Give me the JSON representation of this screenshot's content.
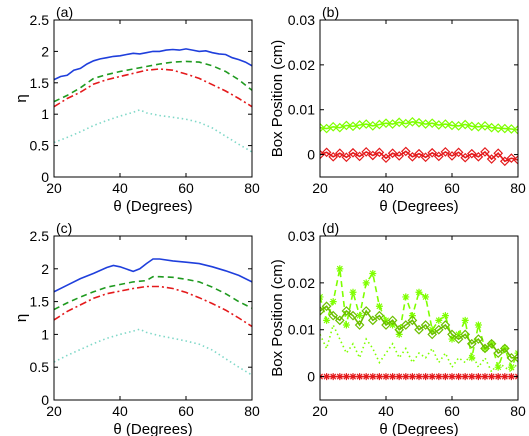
{
  "chart_data": [
    {
      "type": "line",
      "panel_label": "(a)",
      "xlabel": "θ (Degrees)",
      "ylabel": "η",
      "xlim": [
        20,
        80
      ],
      "ylim": [
        0,
        2.5
      ],
      "xticks": [
        20,
        40,
        60,
        80
      ],
      "yticks": [
        0,
        0.5,
        1,
        1.5,
        2,
        2.5
      ],
      "ytick_labels": [
        "0",
        "0.5",
        "1",
        "1.5",
        "2",
        "2.5"
      ],
      "grid": false,
      "series": [
        {
          "color": "#1f3fdc",
          "style": "solid",
          "x": [
            20,
            22,
            24,
            26,
            28,
            30,
            32,
            34,
            36,
            38,
            40,
            42,
            44,
            46,
            48,
            50,
            52,
            54,
            56,
            58,
            60,
            62,
            64,
            66,
            68,
            70,
            72,
            74,
            76,
            78,
            80
          ],
          "y": [
            1.55,
            1.6,
            1.62,
            1.7,
            1.73,
            1.8,
            1.85,
            1.88,
            1.9,
            1.92,
            1.93,
            1.95,
            1.97,
            1.96,
            1.98,
            2.0,
            2.0,
            2.02,
            2.03,
            2.02,
            2.04,
            2.02,
            2.0,
            2.01,
            1.98,
            1.96,
            1.95,
            1.9,
            1.87,
            1.83,
            1.77
          ]
        },
        {
          "color": "#1f9a1f",
          "style": "dashed",
          "x": [
            20,
            24,
            28,
            32,
            36,
            40,
            44,
            48,
            52,
            56,
            60,
            64,
            68,
            72,
            76,
            80
          ],
          "y": [
            1.2,
            1.3,
            1.42,
            1.57,
            1.63,
            1.68,
            1.72,
            1.76,
            1.8,
            1.83,
            1.84,
            1.83,
            1.77,
            1.68,
            1.55,
            1.38
          ]
        },
        {
          "color": "#e41a1c",
          "style": "dashdot",
          "x": [
            20,
            24,
            28,
            32,
            36,
            40,
            44,
            48,
            52,
            56,
            60,
            64,
            68,
            72,
            76,
            80
          ],
          "y": [
            1.12,
            1.25,
            1.35,
            1.48,
            1.55,
            1.6,
            1.65,
            1.7,
            1.72,
            1.7,
            1.64,
            1.57,
            1.47,
            1.37,
            1.25,
            1.12
          ]
        },
        {
          "color": "#7fd8c8",
          "style": "dotted",
          "x": [
            20,
            24,
            28,
            32,
            36,
            40,
            44,
            46,
            48,
            52,
            56,
            60,
            64,
            68,
            72,
            76,
            80
          ],
          "y": [
            0.55,
            0.63,
            0.72,
            0.82,
            0.9,
            0.97,
            1.03,
            1.07,
            1.02,
            0.98,
            0.95,
            0.92,
            0.87,
            0.78,
            0.65,
            0.52,
            0.4
          ]
        }
      ]
    },
    {
      "type": "line",
      "panel_label": "(b)",
      "xlabel": "θ (Degrees)",
      "ylabel": "Box Position (cm)",
      "xlim": [
        20,
        80
      ],
      "ylim": [
        -0.005,
        0.03
      ],
      "xticks": [
        20,
        40,
        60,
        80
      ],
      "yticks": [
        0,
        0.01,
        0.02,
        0.03
      ],
      "ytick_labels": [
        "0",
        "0.01",
        "0.02",
        "0.03"
      ],
      "grid": false,
      "series": [
        {
          "color": "#7fff00",
          "style": "solid-diamond",
          "x": [
            20,
            22,
            24,
            26,
            28,
            30,
            32,
            34,
            36,
            38,
            40,
            42,
            44,
            46,
            48,
            50,
            52,
            54,
            56,
            58,
            60,
            62,
            64,
            66,
            68,
            70,
            72,
            74,
            76,
            78,
            80
          ],
          "y": [
            0.006,
            0.0058,
            0.0062,
            0.006,
            0.0065,
            0.0063,
            0.0066,
            0.0068,
            0.0064,
            0.0067,
            0.007,
            0.0068,
            0.0072,
            0.0069,
            0.0073,
            0.0071,
            0.0068,
            0.007,
            0.0066,
            0.0068,
            0.0065,
            0.0064,
            0.0067,
            0.0063,
            0.0062,
            0.0064,
            0.006,
            0.0059,
            0.0058,
            0.0057,
            0.0055
          ]
        },
        {
          "color": "#e41a1c",
          "style": "solid-diamond",
          "x": [
            20,
            22,
            24,
            26,
            28,
            30,
            32,
            34,
            36,
            38,
            40,
            42,
            44,
            46,
            48,
            50,
            52,
            54,
            56,
            58,
            60,
            62,
            64,
            66,
            68,
            70,
            72,
            74,
            76,
            78,
            80
          ],
          "y": [
            0.0,
            0.0005,
            -0.0005,
            0.0003,
            -0.0006,
            0.0004,
            -0.0004,
            0.0006,
            -0.0002,
            0.0005,
            -0.0008,
            0.0003,
            -0.0003,
            0.0007,
            -0.0005,
            0.0002,
            -0.0006,
            0.0004,
            -0.0004,
            0.0006,
            -0.0003,
            0.0005,
            -0.0007,
            0.0002,
            -0.0005,
            0.0006,
            -0.001,
            0.0003,
            -0.0015,
            -0.0008,
            -0.0012
          ]
        }
      ]
    },
    {
      "type": "line",
      "panel_label": "(c)",
      "xlabel": "θ (Degrees)",
      "ylabel": "η",
      "xlim": [
        20,
        80
      ],
      "ylim": [
        0,
        2.5
      ],
      "xticks": [
        20,
        40,
        60,
        80
      ],
      "yticks": [
        0,
        0.5,
        1,
        1.5,
        2,
        2.5
      ],
      "ytick_labels": [
        "0",
        "0.5",
        "1",
        "1.5",
        "2",
        "2.5"
      ],
      "grid": false,
      "series": [
        {
          "color": "#1f3fdc",
          "style": "solid",
          "x": [
            20,
            24,
            28,
            32,
            36,
            38,
            40,
            44,
            46,
            48,
            50,
            52,
            56,
            60,
            64,
            68,
            72,
            76,
            80
          ],
          "y": [
            1.65,
            1.75,
            1.85,
            1.93,
            2.02,
            2.05,
            2.03,
            1.96,
            2.0,
            2.08,
            2.15,
            2.15,
            2.12,
            2.1,
            2.08,
            2.03,
            1.97,
            1.9,
            1.8
          ]
        },
        {
          "color": "#1f9a1f",
          "style": "dashed",
          "x": [
            20,
            24,
            28,
            32,
            36,
            40,
            44,
            48,
            50,
            52,
            56,
            60,
            64,
            68,
            72,
            76,
            80
          ],
          "y": [
            1.38,
            1.48,
            1.57,
            1.65,
            1.72,
            1.76,
            1.8,
            1.82,
            1.88,
            1.88,
            1.87,
            1.84,
            1.8,
            1.72,
            1.62,
            1.5,
            1.4
          ]
        },
        {
          "color": "#e41a1c",
          "style": "dashdot",
          "x": [
            20,
            24,
            28,
            32,
            36,
            40,
            44,
            48,
            52,
            56,
            60,
            64,
            68,
            72,
            76,
            80
          ],
          "y": [
            1.22,
            1.35,
            1.45,
            1.55,
            1.62,
            1.66,
            1.7,
            1.73,
            1.73,
            1.7,
            1.64,
            1.56,
            1.47,
            1.37,
            1.25,
            1.12
          ]
        },
        {
          "color": "#7fd8c8",
          "style": "dotted",
          "x": [
            20,
            24,
            28,
            32,
            36,
            40,
            44,
            46,
            48,
            52,
            56,
            60,
            64,
            68,
            72,
            76,
            80
          ],
          "y": [
            0.58,
            0.68,
            0.77,
            0.86,
            0.94,
            1.0,
            1.05,
            1.08,
            1.03,
            0.98,
            0.94,
            0.9,
            0.85,
            0.76,
            0.63,
            0.5,
            0.38
          ]
        }
      ]
    },
    {
      "type": "scatter",
      "panel_label": "(d)",
      "xlabel": "θ (Degrees)",
      "ylabel": "Box Position (cm)",
      "xlim": [
        20,
        80
      ],
      "ylim": [
        -0.005,
        0.03
      ],
      "xticks": [
        20,
        40,
        60,
        80
      ],
      "yticks": [
        0,
        0.01,
        0.02,
        0.03
      ],
      "ytick_labels": [
        "0",
        "0.01",
        "0.02",
        "0.03"
      ],
      "grid": false,
      "series": [
        {
          "color": "#7fff00",
          "style": "dashed-star",
          "x": [
            20,
            22,
            24,
            26,
            28,
            30,
            32,
            34,
            36,
            38,
            40,
            42,
            44,
            46,
            48,
            50,
            52,
            54,
            56,
            58,
            60,
            62,
            64,
            66,
            68,
            70,
            72,
            74,
            76,
            78,
            80
          ],
          "y": [
            0.017,
            0.012,
            0.016,
            0.023,
            0.011,
            0.018,
            0.013,
            0.02,
            0.022,
            0.015,
            0.012,
            0.011,
            0.009,
            0.017,
            0.013,
            0.018,
            0.017,
            0.01,
            0.012,
            0.013,
            0.008,
            0.009,
            0.012,
            0.004,
            0.011,
            0.006,
            0.007,
            0.002,
            0.006,
            0.002,
            0.005
          ]
        },
        {
          "color": "#7fff00",
          "style": "dotted",
          "x": [
            20,
            22,
            24,
            26,
            28,
            30,
            32,
            34,
            36,
            38,
            40,
            42,
            44,
            46,
            48,
            50,
            52,
            54,
            56,
            58,
            60,
            62,
            64,
            66,
            68,
            70,
            72,
            74,
            76,
            78,
            80
          ],
          "y": [
            0.009,
            0.006,
            0.011,
            0.008,
            0.005,
            0.007,
            0.004,
            0.008,
            0.006,
            0.003,
            0.005,
            0.007,
            0.004,
            0.006,
            0.003,
            0.005,
            0.004,
            0.006,
            0.003,
            0.005,
            0.002,
            0.004,
            0.003,
            0.005,
            0.002,
            0.004,
            0.001,
            0.003,
            0.002,
            0.001,
            0.003
          ]
        },
        {
          "color": "#6cc000",
          "style": "solid-diamond",
          "x": [
            20,
            22,
            24,
            26,
            28,
            30,
            32,
            34,
            36,
            38,
            40,
            42,
            44,
            46,
            48,
            50,
            52,
            54,
            56,
            58,
            60,
            62,
            64,
            66,
            68,
            70,
            72,
            74,
            76,
            78,
            80
          ],
          "y": [
            0.014,
            0.015,
            0.013,
            0.012,
            0.014,
            0.013,
            0.011,
            0.014,
            0.012,
            0.013,
            0.011,
            0.012,
            0.01,
            0.011,
            0.012,
            0.01,
            0.011,
            0.009,
            0.01,
            0.011,
            0.009,
            0.008,
            0.009,
            0.007,
            0.008,
            0.006,
            0.007,
            0.005,
            0.006,
            0.004,
            0.004
          ]
        },
        {
          "color": "#e41a1c",
          "style": "solid-star",
          "x": [
            20,
            22,
            24,
            26,
            28,
            30,
            32,
            34,
            36,
            38,
            40,
            42,
            44,
            46,
            48,
            50,
            52,
            54,
            56,
            58,
            60,
            62,
            64,
            66,
            68,
            70,
            72,
            74,
            76,
            78,
            80
          ],
          "y": [
            0,
            0,
            0,
            0,
            0,
            0,
            0,
            0,
            0,
            0,
            0,
            0,
            0,
            0,
            0,
            0,
            0,
            0,
            0,
            0,
            0,
            0,
            0,
            0,
            0,
            0,
            0,
            0,
            0,
            0,
            0
          ]
        }
      ]
    }
  ]
}
